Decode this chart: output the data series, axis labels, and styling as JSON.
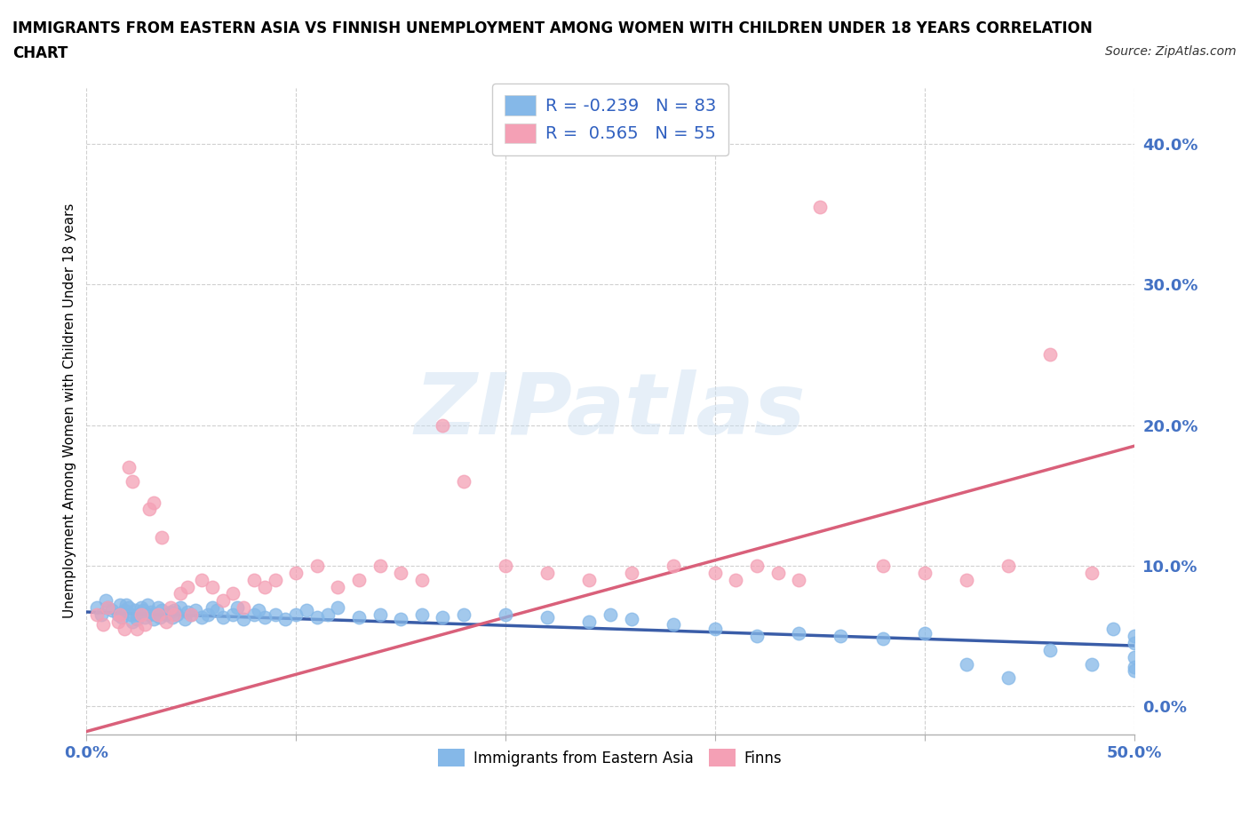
{
  "title_line1": "IMMIGRANTS FROM EASTERN ASIA VS FINNISH UNEMPLOYMENT AMONG WOMEN WITH CHILDREN UNDER 18 YEARS CORRELATION",
  "title_line2": "CHART",
  "source_text": "Source: ZipAtlas.com",
  "ylabel": "Unemployment Among Women with Children Under 18 years",
  "xlim": [
    0.0,
    0.5
  ],
  "ylim": [
    -0.02,
    0.44
  ],
  "xticks": [
    0.0,
    0.1,
    0.2,
    0.3,
    0.4,
    0.5
  ],
  "yticks": [
    0.0,
    0.1,
    0.2,
    0.3,
    0.4
  ],
  "blue_color": "#85b8e8",
  "pink_color": "#f4a0b5",
  "blue_line_color": "#3a5da8",
  "pink_line_color": "#d9607a",
  "R_blue": -0.239,
  "N_blue": 83,
  "R_pink": 0.565,
  "N_pink": 55,
  "legend_label_blue": "Immigrants from Eastern Asia",
  "legend_label_pink": "Finns",
  "watermark": "ZIPatlas",
  "blue_line_x0": 0.0,
  "blue_line_y0": 0.067,
  "blue_line_x1": 0.5,
  "blue_line_y1": 0.043,
  "pink_line_x0": 0.0,
  "pink_line_y0": -0.018,
  "pink_line_x1": 0.5,
  "pink_line_y1": 0.185,
  "blue_scatter_x": [
    0.005,
    0.007,
    0.009,
    0.01,
    0.012,
    0.015,
    0.016,
    0.017,
    0.018,
    0.019,
    0.02,
    0.021,
    0.022,
    0.023,
    0.024,
    0.025,
    0.026,
    0.027,
    0.028,
    0.029,
    0.03,
    0.031,
    0.032,
    0.033,
    0.034,
    0.035,
    0.036,
    0.038,
    0.04,
    0.041,
    0.042,
    0.043,
    0.045,
    0.047,
    0.048,
    0.05,
    0.052,
    0.055,
    0.058,
    0.06,
    0.062,
    0.065,
    0.07,
    0.072,
    0.075,
    0.08,
    0.082,
    0.085,
    0.09,
    0.095,
    0.1,
    0.105,
    0.11,
    0.115,
    0.12,
    0.13,
    0.14,
    0.15,
    0.16,
    0.17,
    0.18,
    0.2,
    0.22,
    0.24,
    0.25,
    0.26,
    0.28,
    0.3,
    0.32,
    0.34,
    0.36,
    0.38,
    0.4,
    0.42,
    0.44,
    0.46,
    0.48,
    0.49,
    0.5,
    0.5,
    0.5,
    0.5,
    0.5
  ],
  "blue_scatter_y": [
    0.07,
    0.065,
    0.075,
    0.07,
    0.068,
    0.065,
    0.072,
    0.063,
    0.068,
    0.072,
    0.07,
    0.065,
    0.06,
    0.068,
    0.062,
    0.065,
    0.07,
    0.068,
    0.063,
    0.072,
    0.065,
    0.067,
    0.062,
    0.065,
    0.07,
    0.063,
    0.068,
    0.065,
    0.067,
    0.063,
    0.068,
    0.065,
    0.07,
    0.062,
    0.067,
    0.065,
    0.068,
    0.063,
    0.065,
    0.07,
    0.068,
    0.063,
    0.065,
    0.07,
    0.062,
    0.065,
    0.068,
    0.063,
    0.065,
    0.062,
    0.065,
    0.068,
    0.063,
    0.065,
    0.07,
    0.063,
    0.065,
    0.062,
    0.065,
    0.063,
    0.065,
    0.065,
    0.063,
    0.06,
    0.065,
    0.062,
    0.058,
    0.055,
    0.05,
    0.052,
    0.05,
    0.048,
    0.052,
    0.03,
    0.02,
    0.04,
    0.03,
    0.055,
    0.045,
    0.028,
    0.035,
    0.025,
    0.05
  ],
  "pink_scatter_x": [
    0.005,
    0.008,
    0.01,
    0.015,
    0.016,
    0.018,
    0.02,
    0.022,
    0.024,
    0.026,
    0.028,
    0.03,
    0.032,
    0.034,
    0.036,
    0.038,
    0.04,
    0.042,
    0.045,
    0.048,
    0.05,
    0.055,
    0.06,
    0.065,
    0.07,
    0.075,
    0.08,
    0.085,
    0.09,
    0.1,
    0.11,
    0.12,
    0.13,
    0.14,
    0.15,
    0.16,
    0.17,
    0.18,
    0.2,
    0.22,
    0.24,
    0.26,
    0.28,
    0.3,
    0.31,
    0.32,
    0.33,
    0.34,
    0.35,
    0.38,
    0.4,
    0.42,
    0.44,
    0.46,
    0.48
  ],
  "pink_scatter_y": [
    0.065,
    0.058,
    0.07,
    0.06,
    0.065,
    0.055,
    0.17,
    0.16,
    0.055,
    0.065,
    0.058,
    0.14,
    0.145,
    0.065,
    0.12,
    0.06,
    0.07,
    0.065,
    0.08,
    0.085,
    0.065,
    0.09,
    0.085,
    0.075,
    0.08,
    0.07,
    0.09,
    0.085,
    0.09,
    0.095,
    0.1,
    0.085,
    0.09,
    0.1,
    0.095,
    0.09,
    0.2,
    0.16,
    0.1,
    0.095,
    0.09,
    0.095,
    0.1,
    0.095,
    0.09,
    0.1,
    0.095,
    0.09,
    0.355,
    0.1,
    0.095,
    0.09,
    0.1,
    0.25,
    0.095
  ]
}
